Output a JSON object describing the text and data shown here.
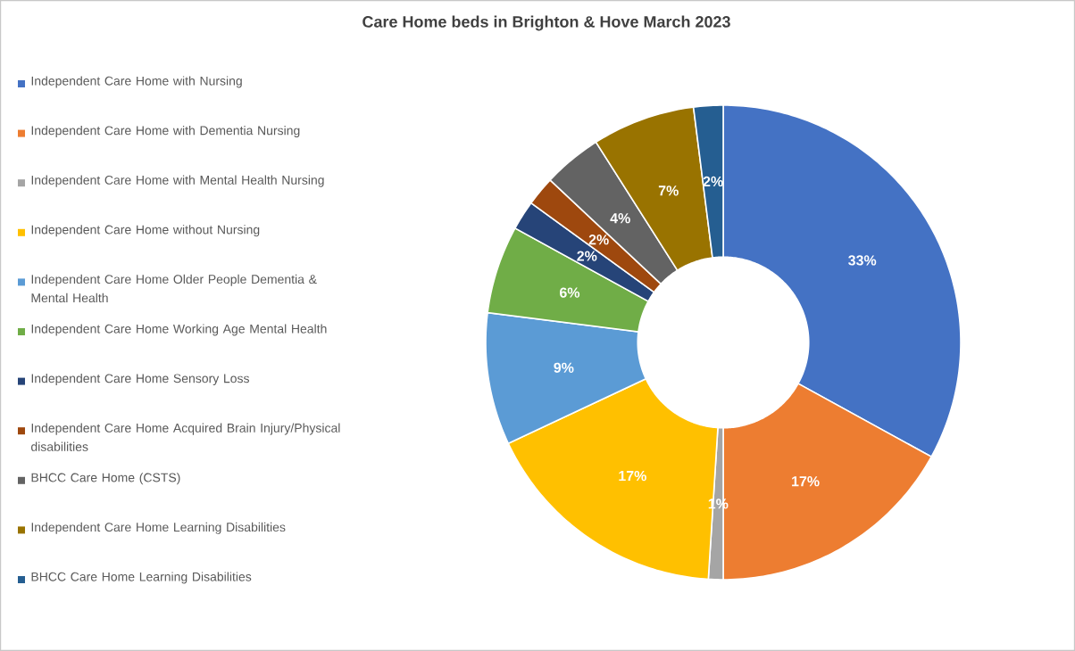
{
  "chart_data": {
    "type": "donut",
    "title": "Care Home beds in Brighton & Hove March 2023",
    "categories": [
      "Independent Care Home with Nursing",
      "Independent Care Home with Dementia Nursing",
      "Independent Care Home with Mental Health Nursing",
      "Independent Care Home without Nursing",
      "Independent Care Home Older People Dementia & Mental Health",
      "Independent Care Home Working Age  Mental Health",
      "Independent Care Home Sensory Loss",
      "Independent Care Home Acquired Brain Injury/Physical disabilities",
      "BHCC Care Home (CSTS)",
      "Independent Care Home Learning Disabilities",
      "BHCC Care Home Learning Disabilities"
    ],
    "values": [
      33,
      17,
      1,
      17,
      9,
      6,
      2,
      2,
      4,
      7,
      2
    ],
    "value_labels": [
      "33%",
      "17%",
      "1%",
      "17%",
      "9%",
      "6%",
      "2%",
      "2%",
      "4%",
      "7%",
      "2%"
    ],
    "colors": [
      "#4472c4",
      "#ed7d31",
      "#a5a5a5",
      "#ffc000",
      "#5b9bd5",
      "#70ad47",
      "#264478",
      "#9e480e",
      "#636363",
      "#997300",
      "#255e91"
    ],
    "legend": "left"
  }
}
